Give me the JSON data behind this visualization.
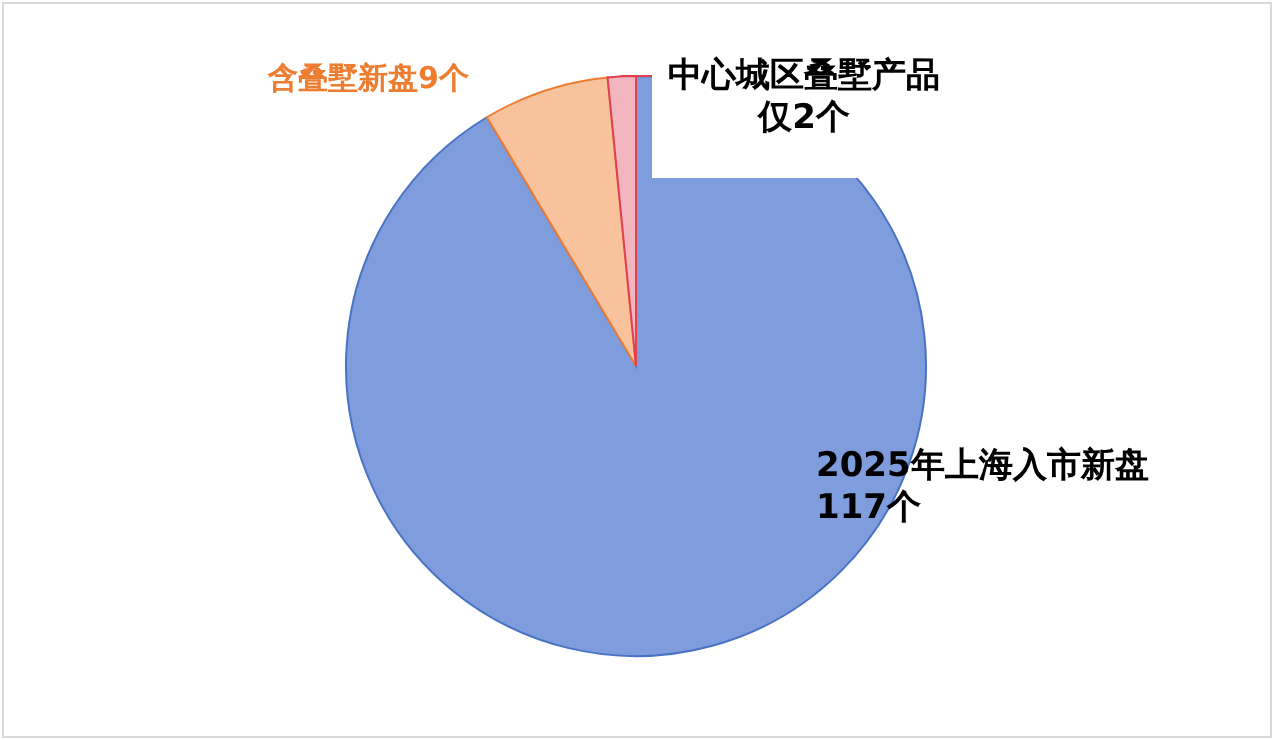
{
  "chart_data": {
    "type": "pie",
    "categories": [
      "2025年上海入市新盘117个",
      "含叠墅新盘9个",
      "中心城区叠墅产品仅2个"
    ],
    "values": [
      117,
      9,
      2
    ],
    "colors": [
      "#7f9ddc",
      "#f7c29c",
      "#f2b6bf"
    ]
  }
}
